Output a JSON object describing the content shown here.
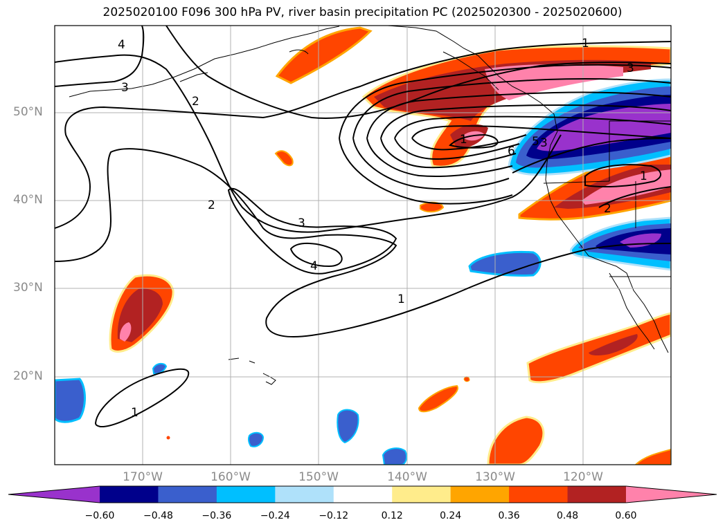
{
  "title": "2025020100 F096 300 hPa PV, river basin precipitation PC (2025020300 - 2025020600)",
  "lat_labels": [
    "50°N",
    "40°N",
    "30°N",
    "20°N"
  ],
  "lon_labels": [
    "170°W",
    "160°W",
    "150°W",
    "140°W",
    "130°W",
    "120°W"
  ],
  "colorbar": {
    "colors": [
      "#9932cc",
      "#00008b",
      "#3a5fcd",
      "#00bfff",
      "#afe1fa",
      "#ffffff",
      "#ffec8b",
      "#ffa500",
      "#ff4500",
      "#b22222",
      "#ff82ab"
    ],
    "tick_labels": [
      "−0.60",
      "−0.48",
      "−0.36",
      "−0.24",
      "−0.12",
      "0.12",
      "0.24",
      "0.36",
      "0.48",
      "0.60"
    ]
  },
  "contour_labels": [
    "1",
    "1",
    "1",
    "1",
    "1",
    "2",
    "2",
    "2",
    "3",
    "3",
    "3",
    "3",
    "4",
    "4",
    "5",
    "6"
  ],
  "fields": {
    "variable": "300 hPa PV",
    "shading": "river basin precipitation PC"
  }
}
